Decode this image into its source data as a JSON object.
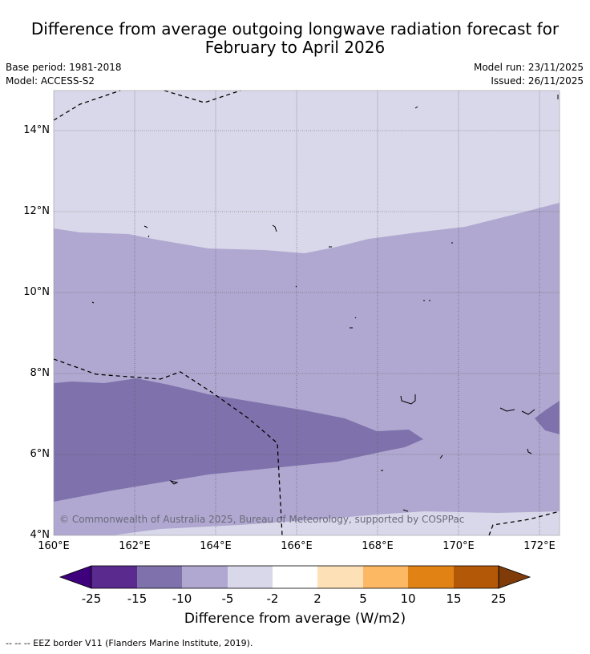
{
  "title": {
    "line1": "Difference from average outgoing longwave radiation forecast for",
    "line2": "February to April 2026"
  },
  "meta": {
    "base_period": "Base period: 1981-2018",
    "model": "Model: ACCESS-S2",
    "model_run": "Model run: 23/11/2025",
    "issued": "Issued: 26/11/2025"
  },
  "axes": {
    "lat_labels": [
      "14°N",
      "12°N",
      "10°N",
      "8°N",
      "6°N",
      "4°N"
    ],
    "lon_labels": [
      "160°E",
      "162°E",
      "164°E",
      "166°E",
      "168°E",
      "170°E",
      "172°E"
    ]
  },
  "copyright": "© Commonwealth of Australia 2025, Bureau of Meteorology, supported by COSPPac",
  "colorbar": {
    "labels": [
      "-25",
      "-15",
      "-10",
      "-5",
      "-2",
      "2",
      "5",
      "10",
      "15",
      "25"
    ],
    "title": "Difference from average (W/m2)",
    "colors": [
      "#3f007d",
      "#5a2a8f",
      "#7f72ac",
      "#b0a8d0",
      "#d8d8ea",
      "#ffffff",
      "#fee0b6",
      "#fdb863",
      "#e08214",
      "#b35806",
      "#7f3b08"
    ]
  },
  "legend": "-- -- -- EEZ border V11 (Flanders Marine Institute, 2019)."
}
